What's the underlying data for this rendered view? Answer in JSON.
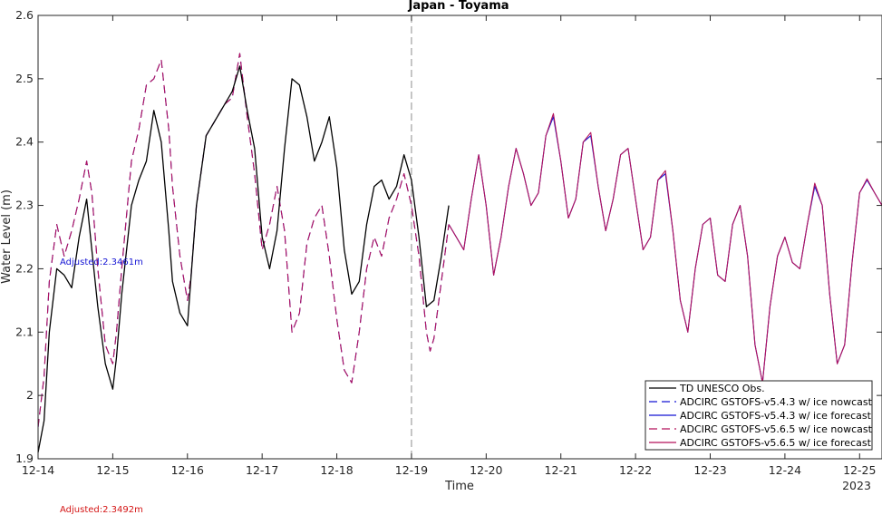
{
  "colors": {
    "obs": "#000000",
    "v543": "#1414d4",
    "v565": "#b3125b",
    "adjusted_nowcast": "#1414d4",
    "adjusted_forecast": "#d41414"
  },
  "chart_data": {
    "type": "line",
    "title": "Japan - Toyama",
    "xlabel": "Time",
    "ylabel": "Water Level (m)",
    "ylim": [
      1.9,
      2.6
    ],
    "yticks": [
      1.9,
      2.0,
      2.1,
      2.2,
      2.3,
      2.4,
      2.5,
      2.6
    ],
    "ytick_labels": [
      "1.9",
      "2",
      "2.1",
      "2.2",
      "2.3",
      "2.4",
      "2.5",
      "2.6"
    ],
    "xlim": [
      0,
      11.3
    ],
    "xticks": [
      0,
      1,
      2,
      3,
      4,
      5,
      6,
      7,
      8,
      9,
      10,
      11
    ],
    "xtick_labels": [
      "12-14",
      "12-15",
      "12-16",
      "12-17",
      "12-18",
      "12-19",
      "12-20",
      "12-21",
      "12-22",
      "12-23",
      "12-24",
      "12-25"
    ],
    "x_year_label": "2023",
    "x_units": "days since 12-14",
    "nowcast_forecast_divider_x": 5.0,
    "grid": false,
    "legend_position": "bottom-right",
    "adjusted_labels": [
      "Adjusted:2.3461m",
      "Adjusted:2.3492m"
    ],
    "series": [
      {
        "name": "TD UNESCO Obs.",
        "style": "solid",
        "color_key": "obs",
        "x": [
          0,
          0.08,
          0.15,
          0.25,
          0.35,
          0.45,
          0.55,
          0.65,
          0.72,
          0.8,
          0.9,
          1.0,
          1.05,
          1.12,
          1.25,
          1.35,
          1.45,
          1.55,
          1.65,
          1.75,
          1.8,
          1.9,
          2.0,
          2.05,
          2.12,
          2.25,
          2.35,
          2.5,
          2.6,
          2.7,
          2.8,
          2.9,
          3.0,
          3.1,
          3.2,
          3.3,
          3.4,
          3.5,
          3.6,
          3.7,
          3.8,
          3.9,
          4.0,
          4.1,
          4.2,
          4.3,
          4.4,
          4.5,
          4.6,
          4.7,
          4.8,
          4.9,
          5.0,
          5.1,
          5.2,
          5.3,
          5.4,
          5.5
        ],
        "y": [
          1.91,
          1.96,
          2.1,
          2.2,
          2.19,
          2.17,
          2.25,
          2.31,
          2.23,
          2.14,
          2.05,
          2.01,
          2.06,
          2.16,
          2.3,
          2.34,
          2.37,
          2.45,
          2.4,
          2.26,
          2.18,
          2.13,
          2.11,
          2.19,
          2.3,
          2.41,
          2.43,
          2.46,
          2.48,
          2.52,
          2.45,
          2.39,
          2.25,
          2.2,
          2.26,
          2.39,
          2.5,
          2.49,
          2.44,
          2.37,
          2.4,
          2.44,
          2.36,
          2.23,
          2.16,
          2.18,
          2.27,
          2.33,
          2.34,
          2.31,
          2.33,
          2.38,
          2.34,
          2.25,
          2.14,
          2.15,
          2.22,
          2.3
        ]
      },
      {
        "name": "ADCIRC GSTOFS-v5.4.3 w/ ice nowcast",
        "style": "dashed",
        "color_key": "v543",
        "x": [
          0,
          0.08,
          0.15,
          0.25,
          0.35,
          0.45,
          0.55,
          0.65,
          0.72,
          0.8,
          0.9,
          1.0,
          1.05,
          1.12,
          1.25,
          1.35,
          1.45,
          1.55,
          1.65,
          1.75,
          1.8,
          1.9,
          2.0,
          2.05,
          2.12,
          2.25,
          2.35,
          2.5,
          2.6,
          2.7,
          2.8,
          2.9,
          3.0,
          3.1,
          3.2,
          3.3,
          3.4,
          3.5,
          3.6,
          3.7,
          3.8,
          3.9,
          4.0,
          4.1,
          4.2,
          4.3,
          4.4,
          4.5,
          4.6,
          4.7,
          4.8,
          4.9,
          5.0,
          5.1,
          5.2,
          5.25,
          5.3,
          5.4,
          5.5
        ],
        "y": [
          1.95,
          2.03,
          2.18,
          2.27,
          2.22,
          2.26,
          2.31,
          2.37,
          2.32,
          2.2,
          2.08,
          2.05,
          2.1,
          2.2,
          2.37,
          2.42,
          2.49,
          2.5,
          2.53,
          2.42,
          2.33,
          2.22,
          2.15,
          2.19,
          2.3,
          2.41,
          2.43,
          2.46,
          2.47,
          2.54,
          2.44,
          2.35,
          2.23,
          2.27,
          2.33,
          2.26,
          2.1,
          2.13,
          2.24,
          2.28,
          2.3,
          2.22,
          2.12,
          2.04,
          2.02,
          2.1,
          2.2,
          2.25,
          2.22,
          2.28,
          2.31,
          2.35,
          2.3,
          2.22,
          2.1,
          2.07,
          2.09,
          2.18,
          2.27
        ]
      },
      {
        "name": "ADCIRC GSTOFS-v5.4.3 w/ ice forecast",
        "style": "solid",
        "color_key": "v543",
        "x": [
          5.5,
          5.6,
          5.7,
          5.8,
          5.9,
          6.0,
          6.1,
          6.2,
          6.3,
          6.4,
          6.5,
          6.6,
          6.7,
          6.8,
          6.9,
          7.0,
          7.1,
          7.2,
          7.3,
          7.4,
          7.5,
          7.6,
          7.7,
          7.8,
          7.9,
          8.0,
          8.1,
          8.2,
          8.3,
          8.4,
          8.5,
          8.6,
          8.7,
          8.8,
          8.9,
          9.0,
          9.1,
          9.2,
          9.3,
          9.4,
          9.5,
          9.6,
          9.7,
          9.8,
          9.9,
          10.0,
          10.1,
          10.2,
          10.3,
          10.4,
          10.5,
          10.6,
          10.7,
          10.8,
          10.9,
          11.0,
          11.1,
          11.2,
          11.3
        ],
        "y": [
          2.27,
          2.25,
          2.23,
          2.31,
          2.38,
          2.3,
          2.19,
          2.25,
          2.33,
          2.39,
          2.35,
          2.3,
          2.32,
          2.41,
          2.44,
          2.37,
          2.28,
          2.31,
          2.4,
          2.41,
          2.33,
          2.26,
          2.31,
          2.38,
          2.39,
          2.31,
          2.23,
          2.25,
          2.34,
          2.35,
          2.26,
          2.15,
          2.1,
          2.2,
          2.27,
          2.28,
          2.19,
          2.18,
          2.27,
          2.3,
          2.22,
          2.08,
          2.02,
          2.14,
          2.22,
          2.25,
          2.21,
          2.2,
          2.27,
          2.33,
          2.3,
          2.16,
          2.05,
          2.08,
          2.21,
          2.32,
          2.34,
          2.32,
          2.3
        ]
      },
      {
        "name": "ADCIRC GSTOFS-v5.6.5 w/ ice nowcast",
        "style": "dashed",
        "color_key": "v565",
        "x": [
          0,
          0.08,
          0.15,
          0.25,
          0.35,
          0.45,
          0.55,
          0.65,
          0.72,
          0.8,
          0.9,
          1.0,
          1.05,
          1.12,
          1.25,
          1.35,
          1.45,
          1.55,
          1.65,
          1.75,
          1.8,
          1.9,
          2.0,
          2.05,
          2.12,
          2.25,
          2.35,
          2.5,
          2.6,
          2.7,
          2.8,
          2.9,
          3.0,
          3.1,
          3.2,
          3.3,
          3.4,
          3.5,
          3.6,
          3.7,
          3.8,
          3.9,
          4.0,
          4.1,
          4.2,
          4.3,
          4.4,
          4.5,
          4.6,
          4.7,
          4.8,
          4.9,
          5.0,
          5.1,
          5.2,
          5.25,
          5.3,
          5.4,
          5.5
        ],
        "y": [
          1.95,
          2.03,
          2.18,
          2.27,
          2.22,
          2.26,
          2.31,
          2.37,
          2.32,
          2.2,
          2.08,
          2.05,
          2.1,
          2.2,
          2.37,
          2.42,
          2.49,
          2.5,
          2.53,
          2.42,
          2.33,
          2.22,
          2.15,
          2.19,
          2.3,
          2.41,
          2.43,
          2.46,
          2.47,
          2.54,
          2.44,
          2.35,
          2.23,
          2.27,
          2.33,
          2.26,
          2.1,
          2.13,
          2.24,
          2.28,
          2.3,
          2.22,
          2.12,
          2.04,
          2.02,
          2.1,
          2.2,
          2.25,
          2.22,
          2.28,
          2.31,
          2.35,
          2.3,
          2.22,
          2.1,
          2.07,
          2.09,
          2.18,
          2.27
        ]
      },
      {
        "name": "ADCIRC GSTOFS-v5.6.5 w/ ice forecast",
        "style": "solid",
        "color_key": "v565",
        "x": [
          5.5,
          5.6,
          5.7,
          5.8,
          5.9,
          6.0,
          6.1,
          6.2,
          6.3,
          6.4,
          6.5,
          6.6,
          6.7,
          6.8,
          6.9,
          7.0,
          7.1,
          7.2,
          7.3,
          7.4,
          7.5,
          7.6,
          7.7,
          7.8,
          7.9,
          8.0,
          8.1,
          8.2,
          8.3,
          8.4,
          8.5,
          8.6,
          8.7,
          8.8,
          8.9,
          9.0,
          9.1,
          9.2,
          9.3,
          9.4,
          9.5,
          9.6,
          9.7,
          9.8,
          9.9,
          10.0,
          10.1,
          10.2,
          10.3,
          10.4,
          10.5,
          10.6,
          10.7,
          10.8,
          10.9,
          11.0,
          11.1,
          11.2,
          11.3
        ],
        "y": [
          2.27,
          2.25,
          2.23,
          2.31,
          2.38,
          2.3,
          2.19,
          2.25,
          2.33,
          2.39,
          2.35,
          2.3,
          2.32,
          2.41,
          2.445,
          2.37,
          2.28,
          2.31,
          2.4,
          2.415,
          2.33,
          2.26,
          2.31,
          2.38,
          2.39,
          2.31,
          2.23,
          2.25,
          2.34,
          2.355,
          2.26,
          2.15,
          2.1,
          2.2,
          2.27,
          2.28,
          2.19,
          2.18,
          2.27,
          2.3,
          2.22,
          2.08,
          2.02,
          2.14,
          2.22,
          2.25,
          2.21,
          2.2,
          2.27,
          2.335,
          2.3,
          2.16,
          2.05,
          2.08,
          2.21,
          2.32,
          2.342,
          2.32,
          2.3
        ]
      }
    ]
  }
}
